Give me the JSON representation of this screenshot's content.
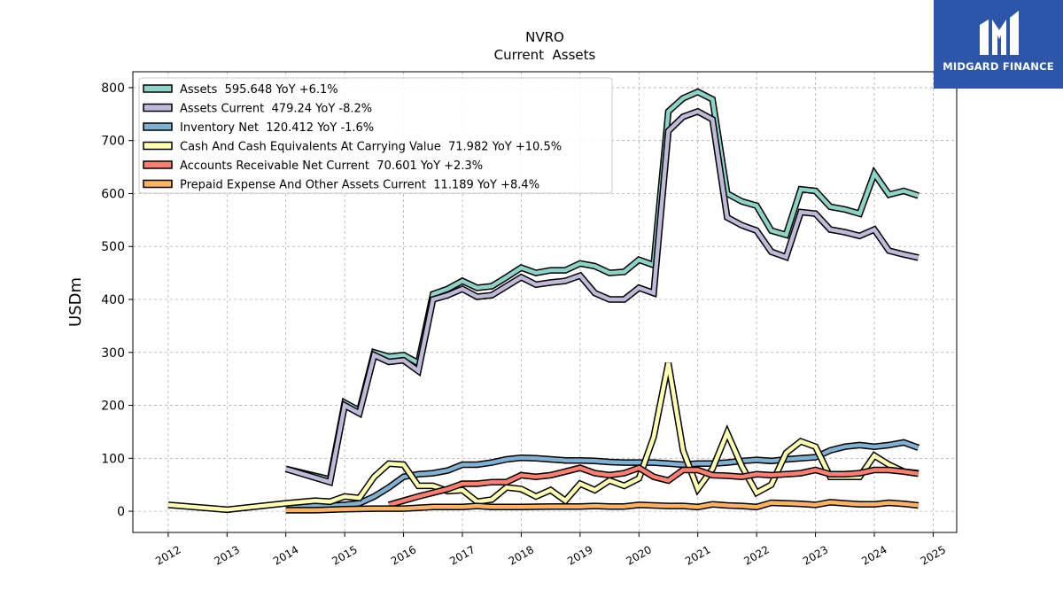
{
  "brand": {
    "name": "MIDGARD FINANCE",
    "color": "#2d55a8"
  },
  "chart_data": {
    "type": "line",
    "title": "NVRO",
    "subtitle": "Current  Assets",
    "xlabel": "",
    "ylabel": "USDm",
    "xlim": [
      2011.4,
      2025.4
    ],
    "ylim": [
      -40,
      830
    ],
    "yticks": [
      0,
      100,
      200,
      300,
      400,
      500,
      600,
      700,
      800
    ],
    "xticks": [
      "2012",
      "2013",
      "2014",
      "2015",
      "2016",
      "2017",
      "2018",
      "2019",
      "2020",
      "2021",
      "2022",
      "2023",
      "2024",
      "2025"
    ],
    "grid": true,
    "legend_position": "top-left",
    "series": [
      {
        "name": "Assets",
        "legend": "Assets  595.648 YoY +6.1%",
        "color": "#8dd3c7",
        "points": [
          [
            2014.0,
            80
          ],
          [
            2014.75,
            60
          ],
          [
            2015.0,
            205
          ],
          [
            2015.25,
            190
          ],
          [
            2015.5,
            300
          ],
          [
            2015.75,
            292
          ],
          [
            2016.0,
            295
          ],
          [
            2016.25,
            280
          ],
          [
            2016.5,
            410
          ],
          [
            2016.75,
            420
          ],
          [
            2017.0,
            435
          ],
          [
            2017.25,
            422
          ],
          [
            2017.5,
            425
          ],
          [
            2017.75,
            442
          ],
          [
            2018.0,
            460
          ],
          [
            2018.25,
            450
          ],
          [
            2018.5,
            455
          ],
          [
            2018.75,
            455
          ],
          [
            2019.0,
            468
          ],
          [
            2019.25,
            463
          ],
          [
            2019.5,
            450
          ],
          [
            2019.75,
            452
          ],
          [
            2020.0,
            475
          ],
          [
            2020.25,
            465
          ],
          [
            2020.5,
            755
          ],
          [
            2020.75,
            780
          ],
          [
            2021.0,
            792
          ],
          [
            2021.25,
            778
          ],
          [
            2021.5,
            600
          ],
          [
            2021.75,
            585
          ],
          [
            2022.0,
            577
          ],
          [
            2022.25,
            530
          ],
          [
            2022.5,
            522
          ],
          [
            2022.75,
            608
          ],
          [
            2023.0,
            605
          ],
          [
            2023.25,
            575
          ],
          [
            2023.5,
            570
          ],
          [
            2023.75,
            562
          ],
          [
            2024.0,
            638
          ],
          [
            2024.25,
            598
          ],
          [
            2024.5,
            605
          ],
          [
            2024.75,
            596
          ]
        ]
      },
      {
        "name": "Assets Current",
        "legend": "Assets Current  479.24 YoY -8.2%",
        "color": "#bebada",
        "points": [
          [
            2014.0,
            80
          ],
          [
            2014.75,
            55
          ],
          [
            2015.0,
            200
          ],
          [
            2015.25,
            185
          ],
          [
            2015.5,
            295
          ],
          [
            2015.75,
            282
          ],
          [
            2016.0,
            285
          ],
          [
            2016.25,
            265
          ],
          [
            2016.5,
            400
          ],
          [
            2016.75,
            408
          ],
          [
            2017.0,
            420
          ],
          [
            2017.25,
            405
          ],
          [
            2017.5,
            408
          ],
          [
            2017.75,
            425
          ],
          [
            2018.0,
            442
          ],
          [
            2018.25,
            428
          ],
          [
            2018.5,
            432
          ],
          [
            2018.75,
            435
          ],
          [
            2019.0,
            445
          ],
          [
            2019.25,
            412
          ],
          [
            2019.5,
            400
          ],
          [
            2019.75,
            400
          ],
          [
            2020.0,
            422
          ],
          [
            2020.25,
            412
          ],
          [
            2020.5,
            718
          ],
          [
            2020.75,
            745
          ],
          [
            2021.0,
            755
          ],
          [
            2021.25,
            740
          ],
          [
            2021.5,
            555
          ],
          [
            2021.75,
            540
          ],
          [
            2022.0,
            530
          ],
          [
            2022.25,
            490
          ],
          [
            2022.5,
            480
          ],
          [
            2022.75,
            565
          ],
          [
            2023.0,
            562
          ],
          [
            2023.25,
            532
          ],
          [
            2023.5,
            527
          ],
          [
            2023.75,
            520
          ],
          [
            2024.0,
            532
          ],
          [
            2024.25,
            492
          ],
          [
            2024.5,
            485
          ],
          [
            2024.75,
            479
          ]
        ]
      },
      {
        "name": "Inventory Net",
        "legend": "Inventory Net  120.412 YoY -1.6%",
        "color": "#80b1d3",
        "points": [
          [
            2014.0,
            10
          ],
          [
            2014.75,
            10
          ],
          [
            2015.0,
            12
          ],
          [
            2015.25,
            15
          ],
          [
            2015.5,
            28
          ],
          [
            2015.75,
            45
          ],
          [
            2016.0,
            65
          ],
          [
            2016.25,
            70
          ],
          [
            2016.5,
            72
          ],
          [
            2016.75,
            77
          ],
          [
            2017.0,
            88
          ],
          [
            2017.25,
            88
          ],
          [
            2017.5,
            92
          ],
          [
            2017.75,
            98
          ],
          [
            2018.0,
            101
          ],
          [
            2018.25,
            100
          ],
          [
            2018.5,
            98
          ],
          [
            2018.75,
            96
          ],
          [
            2019.0,
            96
          ],
          [
            2019.25,
            95
          ],
          [
            2019.5,
            93
          ],
          [
            2019.75,
            92
          ],
          [
            2020.0,
            92
          ],
          [
            2020.25,
            92
          ],
          [
            2020.5,
            90
          ],
          [
            2020.75,
            88
          ],
          [
            2021.0,
            90
          ],
          [
            2021.25,
            90
          ],
          [
            2021.5,
            92
          ],
          [
            2021.75,
            95
          ],
          [
            2022.0,
            97
          ],
          [
            2022.25,
            95
          ],
          [
            2022.5,
            98
          ],
          [
            2022.75,
            100
          ],
          [
            2023.0,
            102
          ],
          [
            2023.25,
            115
          ],
          [
            2023.5,
            122
          ],
          [
            2023.75,
            125
          ],
          [
            2024.0,
            122
          ],
          [
            2024.25,
            125
          ],
          [
            2024.5,
            130
          ],
          [
            2024.75,
            120
          ]
        ]
      },
      {
        "name": "Cash And Cash Equivalents At Carrying Value",
        "legend": "Cash And Cash Equivalents At Carrying Value  71.982 YoY +10.5%",
        "color": "#ffffb3",
        "points": [
          [
            2012.0,
            12
          ],
          [
            2013.0,
            3
          ],
          [
            2014.0,
            15
          ],
          [
            2014.5,
            20
          ],
          [
            2014.75,
            18
          ],
          [
            2015.0,
            28
          ],
          [
            2015.25,
            25
          ],
          [
            2015.5,
            65
          ],
          [
            2015.75,
            90
          ],
          [
            2016.0,
            88
          ],
          [
            2016.25,
            48
          ],
          [
            2016.5,
            48
          ],
          [
            2016.75,
            38
          ],
          [
            2017.0,
            40
          ],
          [
            2017.25,
            18
          ],
          [
            2017.5,
            22
          ],
          [
            2017.75,
            45
          ],
          [
            2018.0,
            42
          ],
          [
            2018.25,
            28
          ],
          [
            2018.5,
            40
          ],
          [
            2018.75,
            20
          ],
          [
            2019.0,
            52
          ],
          [
            2019.25,
            40
          ],
          [
            2019.5,
            58
          ],
          [
            2019.75,
            48
          ],
          [
            2020.0,
            62
          ],
          [
            2020.25,
            140
          ],
          [
            2020.5,
            280
          ],
          [
            2020.75,
            115
          ],
          [
            2021.0,
            42
          ],
          [
            2021.25,
            80
          ],
          [
            2021.5,
            148
          ],
          [
            2021.75,
            85
          ],
          [
            2022.0,
            35
          ],
          [
            2022.25,
            50
          ],
          [
            2022.5,
            110
          ],
          [
            2022.75,
            132
          ],
          [
            2023.0,
            122
          ],
          [
            2023.25,
            65
          ],
          [
            2023.5,
            65
          ],
          [
            2023.75,
            65
          ],
          [
            2024.0,
            105
          ],
          [
            2024.25,
            88
          ],
          [
            2024.5,
            75
          ],
          [
            2024.75,
            72
          ]
        ]
      },
      {
        "name": "Accounts Receivable Net Current",
        "legend": "Accounts Receivable Net Current  70.601 YoY +2.3%",
        "color": "#fb8072",
        "points": [
          [
            2015.75,
            12
          ],
          [
            2016.0,
            20
          ],
          [
            2016.25,
            28
          ],
          [
            2016.5,
            35
          ],
          [
            2016.75,
            42
          ],
          [
            2017.0,
            52
          ],
          [
            2017.25,
            52
          ],
          [
            2017.5,
            55
          ],
          [
            2017.75,
            55
          ],
          [
            2018.0,
            68
          ],
          [
            2018.25,
            65
          ],
          [
            2018.5,
            68
          ],
          [
            2018.75,
            75
          ],
          [
            2019.0,
            82
          ],
          [
            2019.25,
            72
          ],
          [
            2019.5,
            68
          ],
          [
            2019.75,
            72
          ],
          [
            2020.0,
            82
          ],
          [
            2020.25,
            65
          ],
          [
            2020.5,
            58
          ],
          [
            2020.75,
            78
          ],
          [
            2021.0,
            78
          ],
          [
            2021.25,
            68
          ],
          [
            2021.5,
            67
          ],
          [
            2021.75,
            65
          ],
          [
            2022.0,
            70
          ],
          [
            2022.25,
            68
          ],
          [
            2022.5,
            70
          ],
          [
            2022.75,
            72
          ],
          [
            2023.0,
            78
          ],
          [
            2023.25,
            70
          ],
          [
            2023.5,
            70
          ],
          [
            2023.75,
            72
          ],
          [
            2024.0,
            78
          ],
          [
            2024.25,
            78
          ],
          [
            2024.5,
            75
          ],
          [
            2024.75,
            71
          ]
        ]
      },
      {
        "name": "Prepaid Expense And Other Assets Current",
        "legend": "Prepaid Expense And Other Assets Current  11.189 YoY +8.4%",
        "color": "#fdb462",
        "points": [
          [
            2014.0,
            2
          ],
          [
            2014.5,
            2
          ],
          [
            2015.0,
            4
          ],
          [
            2015.5,
            5
          ],
          [
            2016.0,
            5
          ],
          [
            2016.5,
            8
          ],
          [
            2017.0,
            8
          ],
          [
            2017.25,
            10
          ],
          [
            2017.5,
            8
          ],
          [
            2018.0,
            8
          ],
          [
            2018.5,
            9
          ],
          [
            2019.0,
            9
          ],
          [
            2019.25,
            10
          ],
          [
            2019.5,
            9
          ],
          [
            2019.75,
            9
          ],
          [
            2020.0,
            12
          ],
          [
            2020.25,
            11
          ],
          [
            2020.5,
            10
          ],
          [
            2020.75,
            10
          ],
          [
            2021.0,
            8
          ],
          [
            2021.25,
            13
          ],
          [
            2021.5,
            11
          ],
          [
            2021.75,
            10
          ],
          [
            2022.0,
            8
          ],
          [
            2022.25,
            16
          ],
          [
            2022.5,
            15
          ],
          [
            2022.75,
            14
          ],
          [
            2023.0,
            12
          ],
          [
            2023.25,
            17
          ],
          [
            2023.5,
            15
          ],
          [
            2023.75,
            13
          ],
          [
            2024.0,
            13
          ],
          [
            2024.25,
            16
          ],
          [
            2024.5,
            14
          ],
          [
            2024.75,
            11
          ]
        ]
      }
    ]
  }
}
